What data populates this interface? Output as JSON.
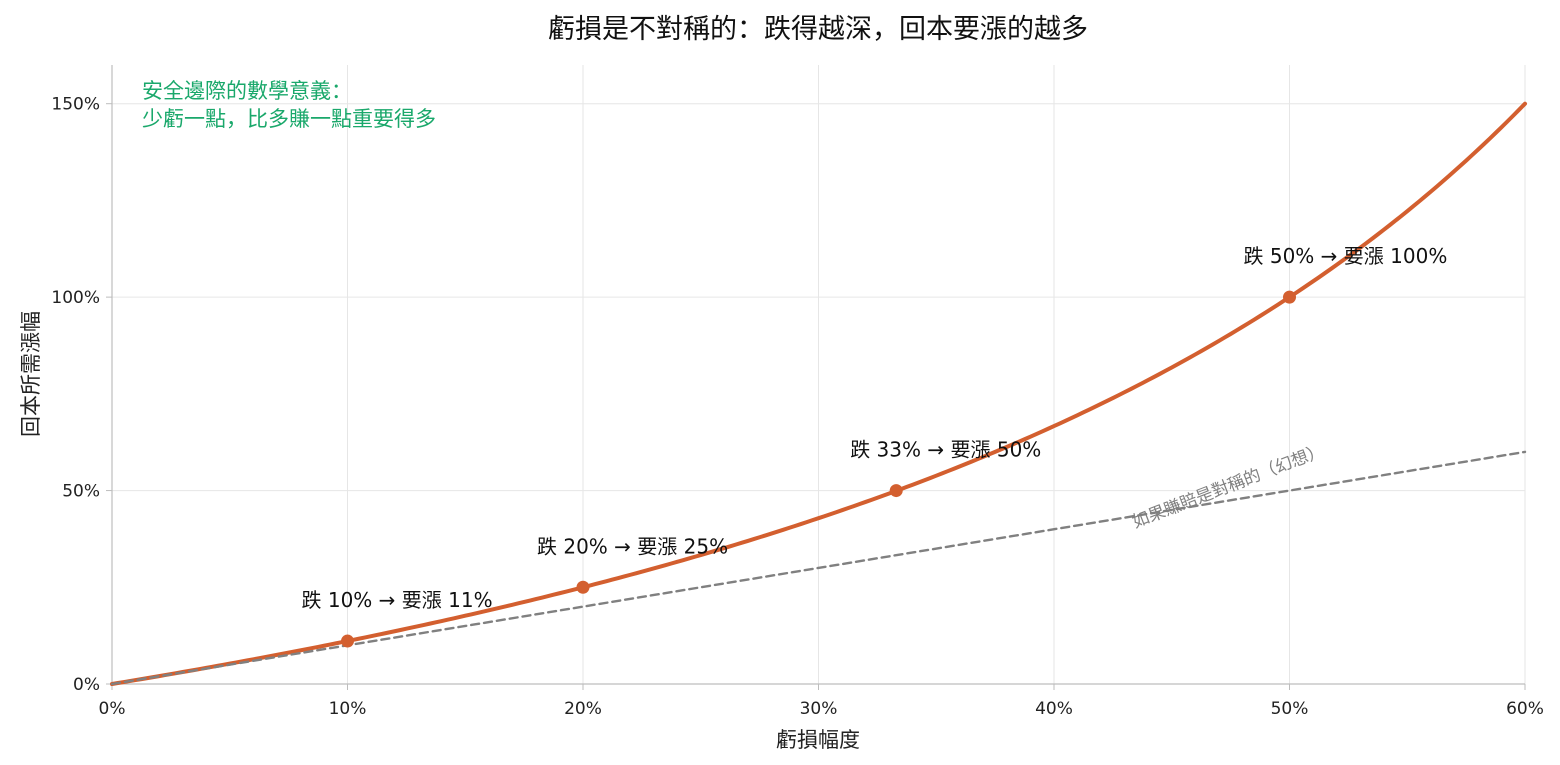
{
  "chart_data": {
    "type": "line",
    "title": "虧損是不對稱的：跌得越深，回本要漲的越多",
    "xlabel": "虧損幅度",
    "ylabel": "回本所需漲幅",
    "xlim": [
      0,
      60
    ],
    "ylim": [
      0,
      160
    ],
    "x_ticks": [
      0,
      10,
      20,
      30,
      40,
      50,
      60
    ],
    "x_tick_labels": [
      "0%",
      "10%",
      "20%",
      "30%",
      "40%",
      "50%",
      "60%"
    ],
    "y_ticks": [
      0,
      50,
      100,
      150
    ],
    "y_tick_labels": [
      "0%",
      "50%",
      "100%",
      "150%"
    ],
    "grid": true,
    "series": [
      {
        "kind": "curve",
        "color": "#d35f2f",
        "style": "solid",
        "x": [
          0,
          5,
          10,
          15,
          20,
          25,
          30,
          33.3,
          35,
          40,
          45,
          50,
          55,
          60
        ],
        "y": [
          0,
          5.3,
          11.1,
          17.6,
          25,
          33.3,
          42.9,
          50,
          53.8,
          66.7,
          81.8,
          100,
          122.2,
          150
        ]
      },
      {
        "name": "如果賺賠是對稱的（幻想）",
        "kind": "reference",
        "color": "#808080",
        "style": "dashed",
        "x": [
          0,
          60
        ],
        "y": [
          0,
          60
        ]
      }
    ],
    "markers": [
      {
        "x": 10,
        "y": 11.1,
        "label": "跌 10% → 要漲 11%"
      },
      {
        "x": 20,
        "y": 25,
        "label": "跌 20% → 要漲 25%"
      },
      {
        "x": 33.3,
        "y": 50,
        "label": "跌 33% → 要漲 50%"
      },
      {
        "x": 50,
        "y": 100,
        "label": "跌 50% → 要漲 100%"
      }
    ],
    "note": {
      "lines": [
        "安全邊際的數學意義：",
        "少虧一點，比多賺一點重要得多"
      ],
      "color": "#1aa86b",
      "position": "top-left"
    }
  }
}
